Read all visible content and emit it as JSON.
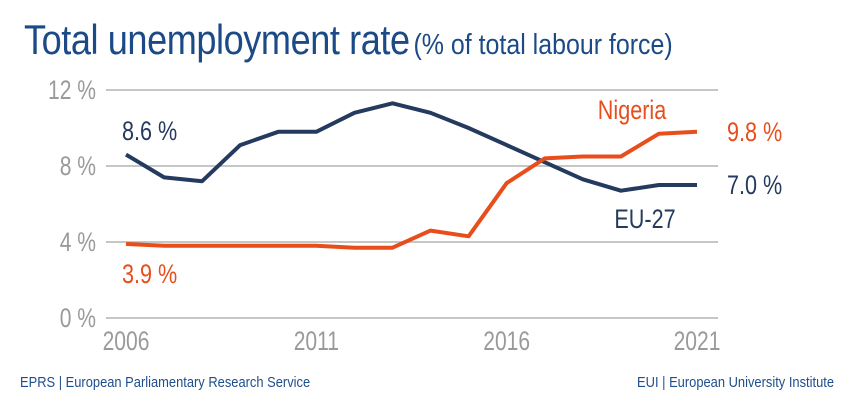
{
  "header": {
    "title": "Total unemployment rate",
    "subtitle": "(% of total labour force)"
  },
  "footer": {
    "left": "EPRS | European Parliamentary Research Service",
    "right": "EUI | European University Institute"
  },
  "colors": {
    "title": "#1b4a86",
    "eu": "#243a5e",
    "nigeria": "#e84e1c",
    "axis_text": "#9a9a9a",
    "grid": "#b4b4b4",
    "footer": "#1f4e8c"
  },
  "chart_data": {
    "type": "line",
    "title": "Total unemployment rate (% of total labour force)",
    "xlabel": "",
    "ylabel": "",
    "x": [
      2006,
      2007,
      2008,
      2009,
      2010,
      2011,
      2012,
      2013,
      2014,
      2015,
      2016,
      2017,
      2018,
      2019,
      2020,
      2021
    ],
    "xlim": [
      2006,
      2021
    ],
    "ylim": [
      0,
      12
    ],
    "grid": true,
    "x_ticks": [
      {
        "value": 2006,
        "label": "2006"
      },
      {
        "value": 2011,
        "label": "2011"
      },
      {
        "value": 2016,
        "label": "2016"
      },
      {
        "value": 2021,
        "label": "2021"
      }
    ],
    "y_ticks": [
      {
        "value": 0,
        "label": "0 %"
      },
      {
        "value": 4,
        "label": "4 %"
      },
      {
        "value": 8,
        "label": "8 %"
      },
      {
        "value": 12,
        "label": "12 %"
      }
    ],
    "series": [
      {
        "name": "EU-27",
        "color_key": "eu",
        "values": [
          8.6,
          7.4,
          7.2,
          9.1,
          9.8,
          9.8,
          10.8,
          11.3,
          10.8,
          10.0,
          9.1,
          8.2,
          7.3,
          6.7,
          7.0,
          7.0
        ],
        "label": "EU-27",
        "start_label": "8.6 %",
        "end_label": "7.0 %"
      },
      {
        "name": "Nigeria",
        "color_key": "nigeria",
        "values": [
          3.9,
          3.8,
          3.8,
          3.8,
          3.8,
          3.8,
          3.7,
          3.7,
          4.6,
          4.3,
          7.1,
          8.4,
          8.5,
          8.5,
          9.7,
          9.8
        ],
        "label": "Nigeria",
        "start_label": "3.9 %",
        "end_label": "9.8 %"
      }
    ],
    "legend": "inline"
  }
}
